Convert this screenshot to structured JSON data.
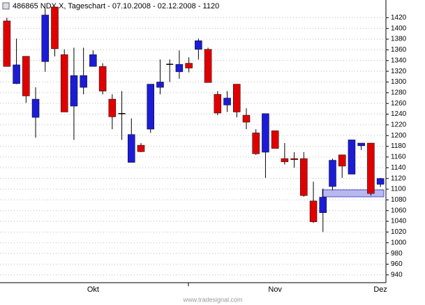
{
  "chart_data": {
    "type": "candlestick",
    "title": "486865  NDX.X, Tageschart - 07.10.2008 - 02.12.2008 - 1120",
    "watermark": "www.tradesignal.com",
    "categories": [
      null,
      null,
      null,
      null,
      null,
      null,
      null,
      null,
      null,
      "Okt",
      null,
      null,
      null,
      null,
      null,
      null,
      null,
      null,
      null,
      null,
      null,
      null,
      null,
      null,
      null,
      null,
      null,
      null,
      "Nov",
      null,
      null,
      null,
      null,
      null,
      null,
      null,
      null,
      null,
      null,
      "Dez"
    ],
    "open": [
      1414,
      1297,
      1348,
      1234,
      1338,
      1440,
      1351,
      1255,
      1290,
      1329,
      1329,
      1268,
      1241,
      1150,
      1182,
      1212,
      1290,
      1333,
      1319,
      1335,
      1361,
      1361,
      1277,
      1257,
      1296,
      1238,
      1205,
      1169,
      1209,
      1157,
      1157,
      1157,
      1078,
      1056,
      1105,
      1164,
      1128,
      1181,
      1186,
      1109
    ],
    "high": [
      1420,
      1381,
      1348,
      1290,
      1438,
      1440,
      1361,
      1364,
      1364,
      1359,
      1335,
      1277,
      1283,
      1232,
      1186,
      1296,
      1342,
      1342,
      1359,
      1346,
      1381,
      1364,
      1283,
      1283,
      1296,
      1251,
      1212,
      1241,
      1209,
      1186,
      1169,
      1169,
      1114,
      1101,
      1157,
      1164,
      1192,
      1186,
      1186,
      1121
    ],
    "low": [
      1329,
      1296,
      1261,
      1196,
      1319,
      1348,
      1244,
      1192,
      1277,
      1329,
      1277,
      1212,
      1192,
      1150,
      1169,
      1205,
      1277,
      1300,
      1306,
      1318,
      1342,
      1299,
      1238,
      1244,
      1234,
      1212,
      1164,
      1121,
      1176,
      1146,
      1140,
      1086,
      1037,
      1020,
      1098,
      1121,
      1128,
      1173,
      1088,
      1104
    ],
    "close": [
      1329,
      1332,
      1274,
      1268,
      1425,
      1362,
      1244,
      1312,
      1312,
      1351,
      1283,
      1235,
      1241,
      1202,
      1170,
      1296,
      1300,
      1333,
      1333,
      1326,
      1377,
      1299,
      1242,
      1270,
      1244,
      1225,
      1166,
      1241,
      1176,
      1151,
      1155,
      1088,
      1039,
      1085,
      1154,
      1143,
      1192,
      1186,
      1092,
      1120
    ],
    "up_color": "#1c1cd6",
    "down_color": "#e00000",
    "doji_color": "#000000",
    "ylim": [
      932,
      1440
    ],
    "yticks": [
      940,
      960,
      980,
      1000,
      1020,
      1040,
      1060,
      1080,
      1100,
      1120,
      1140,
      1160,
      1180,
      1200,
      1220,
      1240,
      1260,
      1280,
      1300,
      1320,
      1340,
      1360,
      1380,
      1400,
      1420
    ],
    "grid": true
  }
}
